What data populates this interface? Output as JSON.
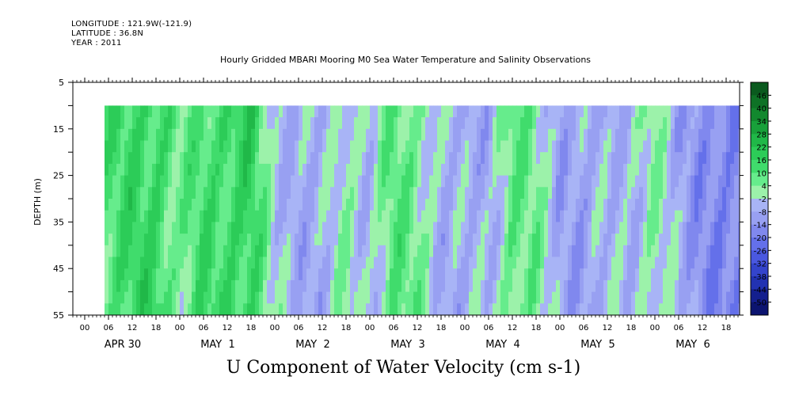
{
  "header": {
    "longitude": "LONGITUDE : 121.9W(-121.9)",
    "latitude": "LATITUDE : 36.8N",
    "year": "YEAR : 2011"
  },
  "title": "Hourly Gridded MBARI Mooring M0 Sea Water Temperature and Salinity Observations",
  "footer": "U Component of Water Velocity (cm s-1)",
  "chart_data": {
    "type": "heatmap",
    "title": "Hourly Gridded MBARI Mooring M0 Sea Water Temperature and Salinity Observations",
    "xlabel": "",
    "ylabel": "DEPTH (m)",
    "variable": "U Component of Water Velocity (cm s-1)",
    "y_ticks": [
      5,
      15,
      25,
      35,
      45,
      55
    ],
    "y_range": [
      5,
      55
    ],
    "y_reversed": true,
    "data_depth_range": [
      10,
      55
    ],
    "x_hour_ticks": [
      "00",
      "06",
      "12",
      "18",
      "00",
      "06",
      "12",
      "18",
      "00",
      "06",
      "12",
      "18",
      "00",
      "06",
      "12",
      "18",
      "00",
      "06",
      "12",
      "18",
      "00",
      "06",
      "12",
      "18",
      "00",
      "06",
      "12",
      "18"
    ],
    "x_day_labels": [
      "APR 30",
      "MAY  1",
      "MAY  2",
      "MAY  3",
      "MAY  4",
      "MAY  5",
      "MAY  6"
    ],
    "data_start_hour": 5,
    "data_end_hour": 167,
    "colorbar": {
      "levels": [
        46,
        40,
        34,
        28,
        22,
        16,
        10,
        4,
        -2,
        -8,
        -14,
        -20,
        -26,
        -32,
        -38,
        -44,
        -50
      ],
      "colors": [
        "#0a5a1e",
        "#0e7226",
        "#12882e",
        "#18a03a",
        "#20b848",
        "#2ccc58",
        "#40dc6c",
        "#66ec8c",
        "#9cf2aa",
        "#a8b4f6",
        "#98a0f2",
        "#8088ee",
        "#6470ea",
        "#4a58e0",
        "#3444cc",
        "#2232b2",
        "#141f8e",
        "#0c1470"
      ]
    },
    "value_estimates_by_hour_cm_s": {
      "hours": [
        6,
        12,
        18,
        24,
        30,
        36,
        42,
        48,
        54,
        60,
        66,
        72,
        78,
        84,
        90,
        96,
        102,
        108,
        114,
        120,
        126,
        132,
        138,
        144,
        150,
        156,
        162
      ],
      "surface_to_bottom_mean": [
        10,
        14,
        16,
        4,
        12,
        14,
        16,
        -4,
        -6,
        -8,
        2,
        -4,
        8,
        6,
        -6,
        -8,
        -6,
        8,
        4,
        -8,
        -10,
        -6,
        -4,
        2,
        -8,
        -14,
        -18
      ]
    }
  }
}
